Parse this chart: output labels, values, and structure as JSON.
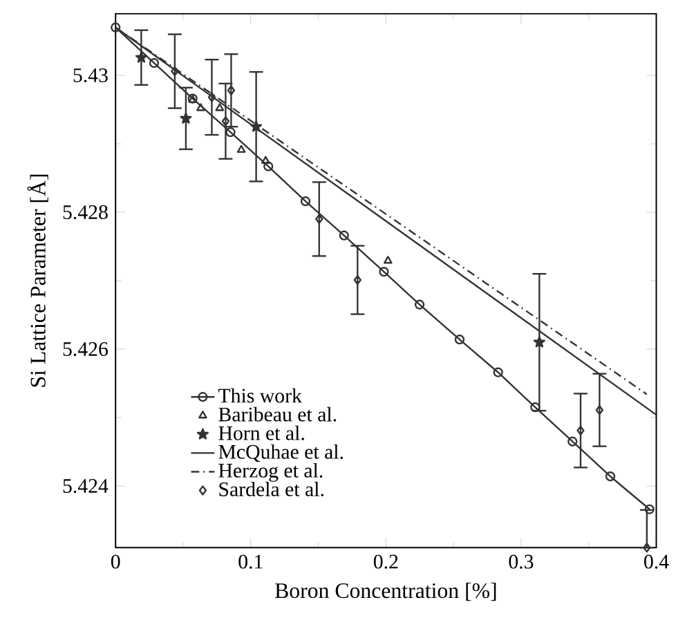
{
  "chart_data": {
    "type": "scatter",
    "xlabel": "Boron Concentration [%]",
    "ylabel": "Si Lattice Parameter [Å]",
    "xlim": [
      0,
      0.4
    ],
    "ylim": [
      5.4231,
      5.4309
    ],
    "xticks": [
      0,
      0.1,
      0.2,
      0.3,
      0.4
    ],
    "yticks": [
      5.424,
      5.426,
      5.428,
      5.43
    ],
    "legend": "bottom left",
    "grid": false,
    "series": [
      {
        "name": "This work",
        "type": "line",
        "color": "#333333",
        "marker": "circle",
        "line_style": "solid",
        "x": [
          0,
          0.0285,
          0.057,
          0.085,
          0.113,
          0.1405,
          0.169,
          0.1985,
          0.2249,
          0.2545,
          0.283,
          0.3104,
          0.338,
          0.366,
          0.395
        ],
        "values": [
          5.4307,
          5.43018,
          5.42966,
          5.42917,
          5.42867,
          5.42816,
          5.42766,
          5.42713,
          5.42665,
          5.42614,
          5.42566,
          5.42515,
          5.42465,
          5.42414,
          5.42366
        ]
      },
      {
        "name": "Baribeau et al.",
        "color": "#333333",
        "marker": "triangle",
        "x": [
          0.057,
          0.063,
          0.077,
          0.093,
          0.111,
          0.2015
        ],
        "values": [
          5.42964,
          5.42952,
          5.42952,
          5.42891,
          5.42875,
          5.42729
        ]
      },
      {
        "name": "Horn et al.",
        "color": "#333333",
        "marker": "star",
        "x": [
          0.019,
          0.052,
          0.104,
          0.3135
        ],
        "values": [
          5.43026,
          5.42937,
          5.42925,
          5.4261
        ],
        "errors": [
          0.0004,
          0.00045,
          0.0008,
          0.001
        ]
      },
      {
        "name": "McQuhae et al.",
        "type": "line",
        "color": "#333333",
        "marker": "none",
        "line_style": "solid",
        "x": [
          0,
          0.4
        ],
        "values": [
          5.4307,
          5.42504
        ]
      },
      {
        "name": "Herzog et al.",
        "type": "line",
        "color": "#333333",
        "marker": "none",
        "line_style": "dashdot",
        "x": [
          0,
          0.393
        ],
        "values": [
          5.4307,
          5.42534
        ]
      },
      {
        "name": "Sardela et al.",
        "color": "#333333",
        "marker": "diamond",
        "x": [
          0.0438,
          0.0712,
          0.0814,
          0.0855,
          0.1506,
          0.179,
          0.344,
          0.358,
          0.393
        ],
        "values": [
          5.43006,
          5.42968,
          5.42933,
          5.42978,
          5.4279,
          5.42701,
          5.42481,
          5.42511,
          5.4231
        ],
        "errors": [
          0.00054,
          0.00055,
          0.00055,
          0.00053,
          0.00054,
          0.0005,
          0.00054,
          0.00053,
          [
            5.4231,
            5.42365
          ]
        ]
      }
    ]
  }
}
